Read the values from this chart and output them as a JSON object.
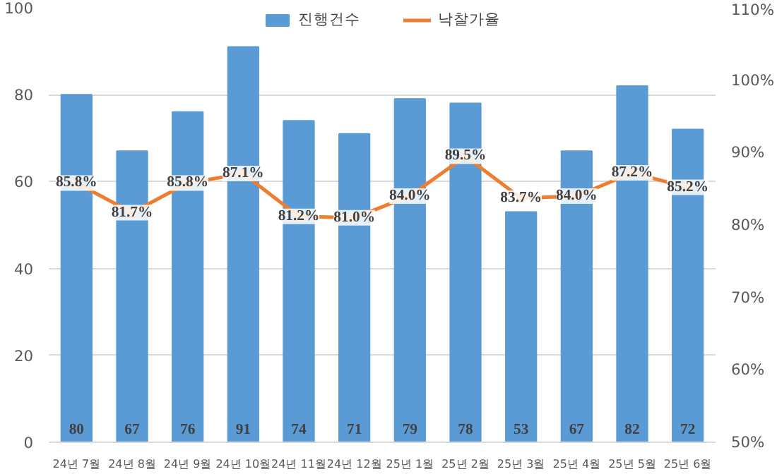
{
  "chart_data": {
    "type": "bar",
    "categories": [
      "24년 7월",
      "24년 8월",
      "24년 9월",
      "24년 10월",
      "24년 11월",
      "24년 12월",
      "25년 1월",
      "25년 2월",
      "25년 3월",
      "25년 4월",
      "25년 5월",
      "25년 6월"
    ],
    "series": [
      {
        "name": "진행건수",
        "color": "#5b9bd5",
        "values": [
          80,
          67,
          76,
          91,
          74,
          71,
          79,
          78,
          53,
          67,
          82,
          72
        ],
        "value_labels": [
          "80",
          "67",
          "76",
          "91",
          "74",
          "71",
          "79",
          "78",
          "53",
          "67",
          "82",
          "72"
        ]
      },
      {
        "name": "낙찰가율",
        "type": "line",
        "axis": "y2",
        "color": "#ed7d31",
        "values": [
          85.8,
          81.7,
          85.8,
          87.1,
          81.2,
          81.0,
          84.0,
          89.5,
          83.7,
          84.0,
          87.2,
          85.2
        ],
        "value_labels": [
          "85.8%",
          "81.7%",
          "85.8%",
          "87.1%",
          "81.2%",
          "81.0%",
          "84.0%",
          "89.5%",
          "83.7%",
          "84.0%",
          "87.2%",
          "85.2%"
        ]
      }
    ],
    "ylim": [
      0,
      100
    ],
    "yticks": [
      0,
      20,
      40,
      60,
      80,
      100
    ],
    "y2lim": [
      50,
      110
    ],
    "y2ticks": [
      {
        "value": 50,
        "label": "50%"
      },
      {
        "value": 60,
        "label": "60%"
      },
      {
        "value": 70,
        "label": "70%"
      },
      {
        "value": 80,
        "label": "80%"
      },
      {
        "value": 90,
        "label": "90%"
      },
      {
        "value": 100,
        "label": "100%"
      },
      {
        "value": 110,
        "label": "110%"
      }
    ],
    "grid": "y",
    "legend": "top",
    "marker": "circle",
    "line_style": "solid"
  }
}
